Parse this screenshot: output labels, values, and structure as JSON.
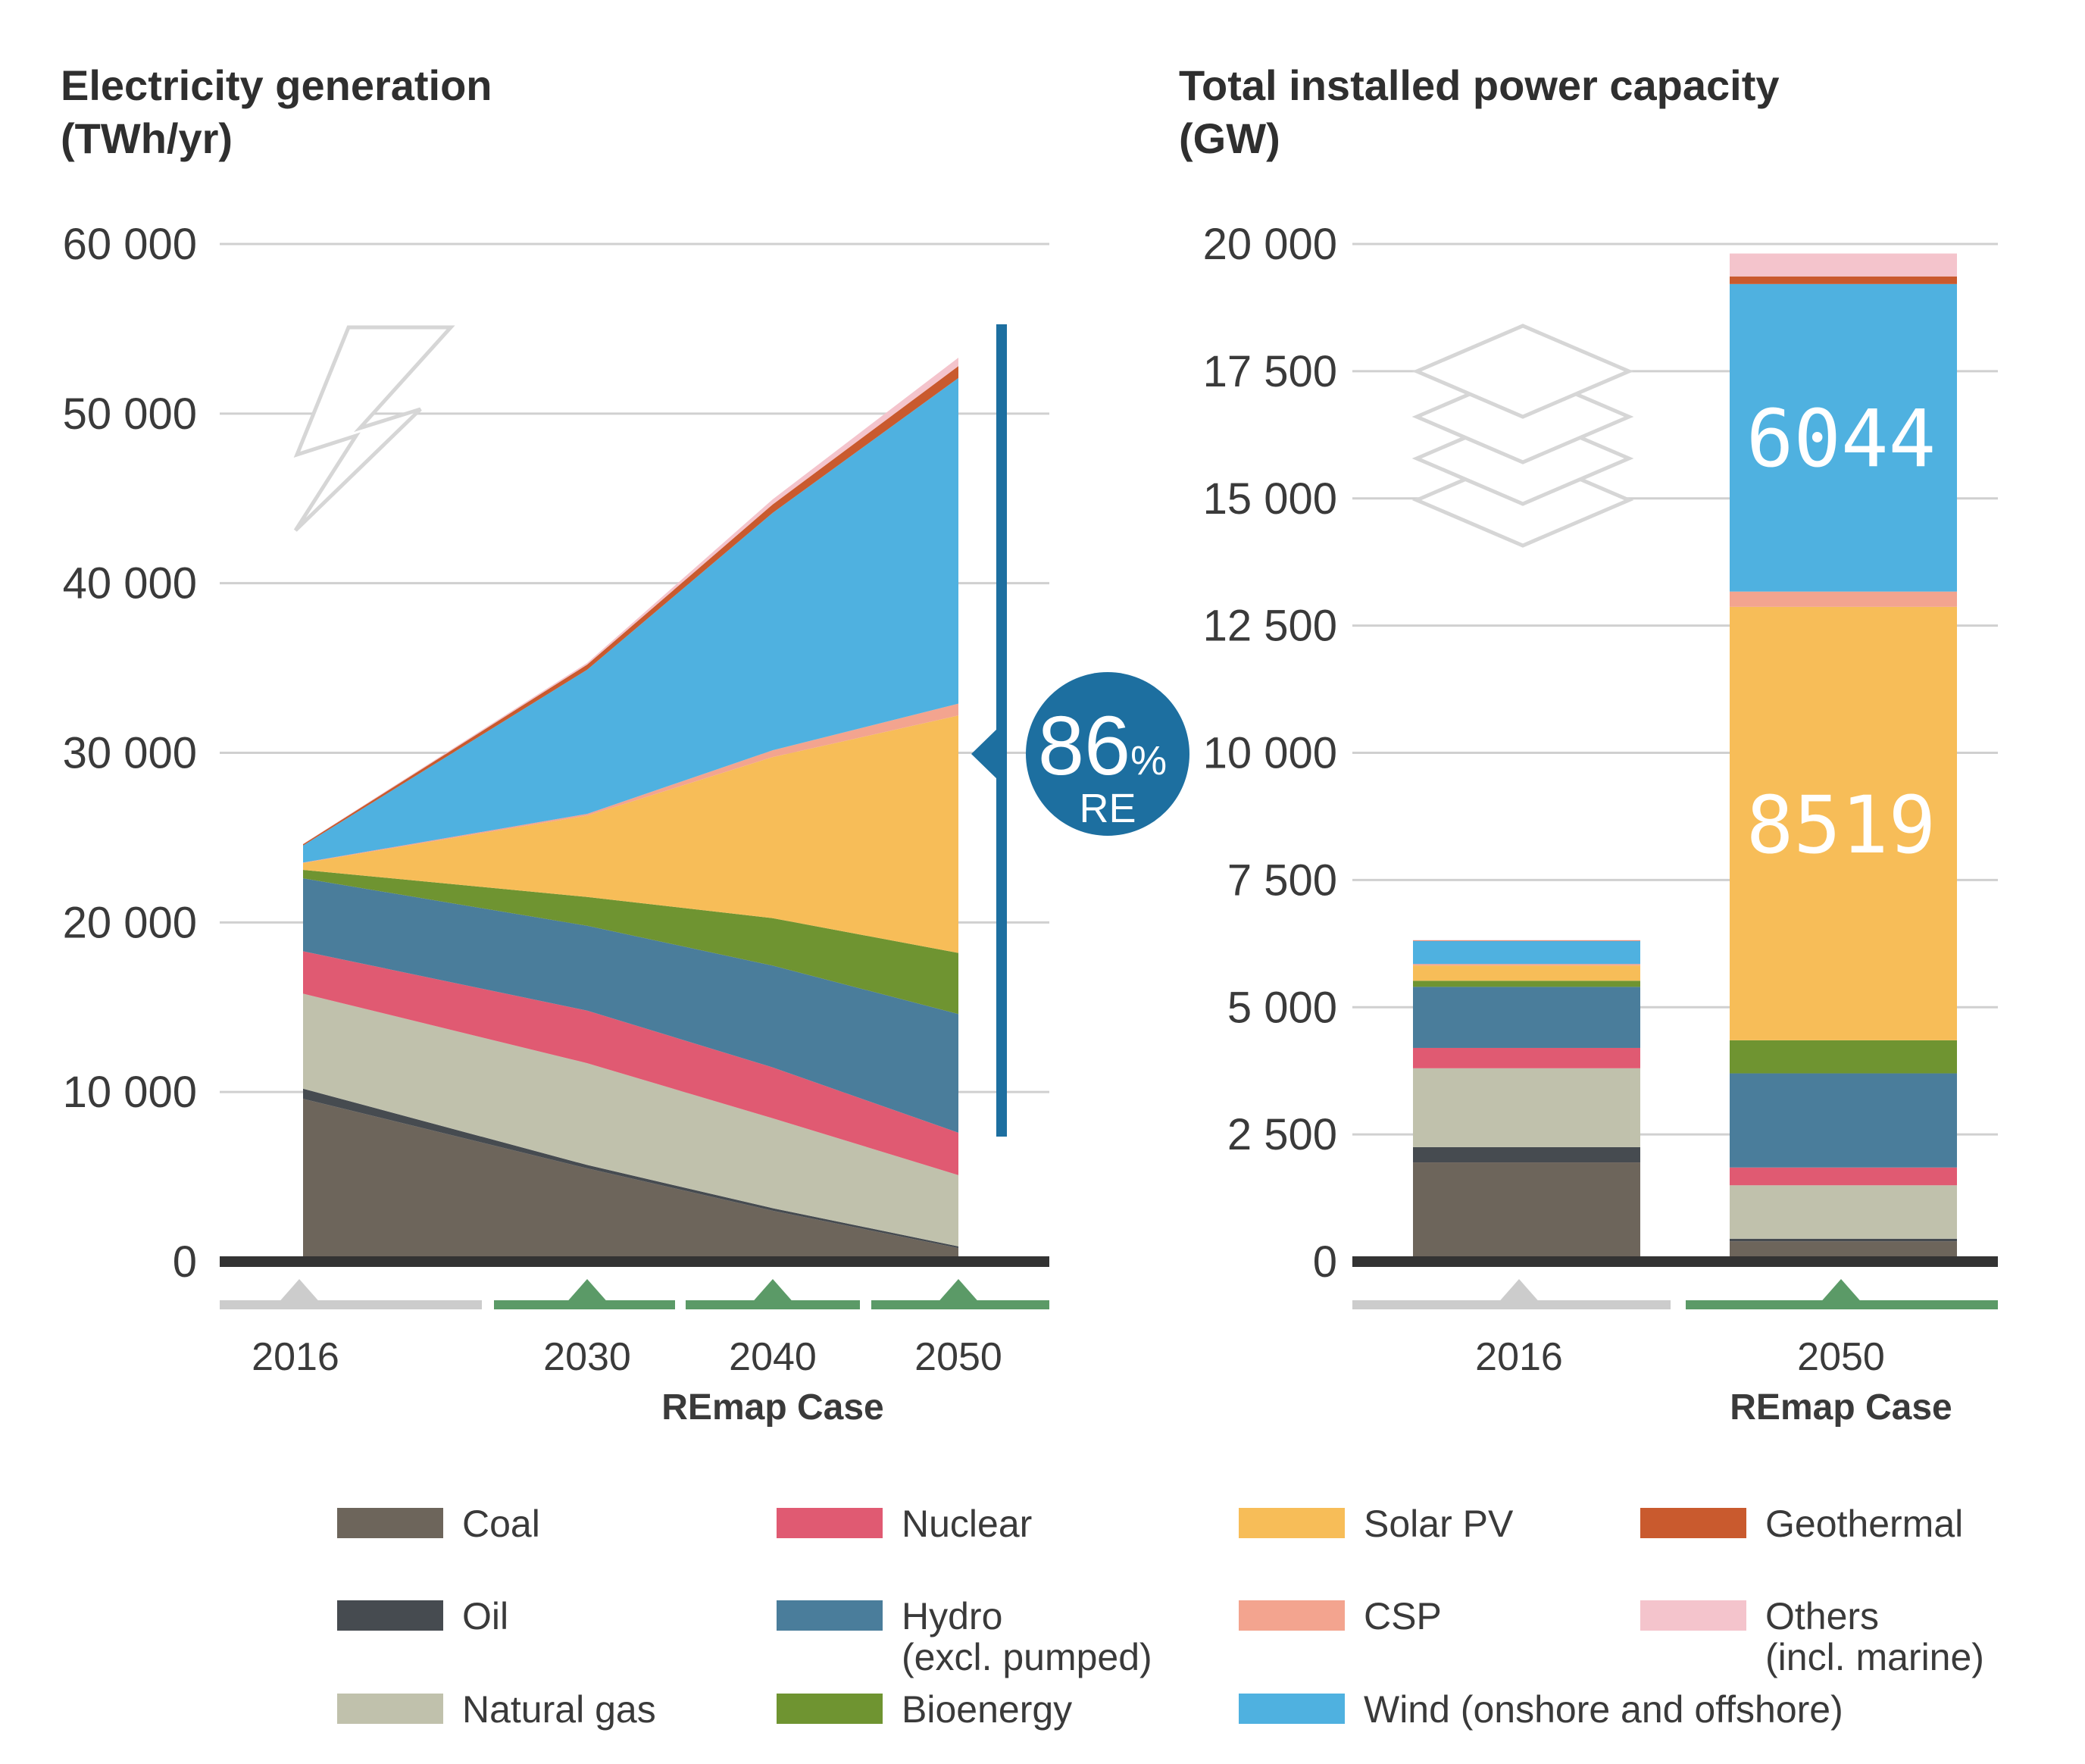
{
  "chart_data": [
    {
      "type": "area",
      "title_line1": "Electricity generation",
      "title_line2": "(TWh/yr)",
      "x": [
        "2016",
        "2030",
        "2040",
        "2050"
      ],
      "case_label": "REmap Case",
      "ylim": [
        0,
        60000
      ],
      "yticks": [
        "0",
        "10 000",
        "20 000",
        "30 000",
        "40 000",
        "50 000",
        "60 000"
      ],
      "ytick_values": [
        0,
        10000,
        20000,
        30000,
        40000,
        50000,
        60000
      ],
      "series": [
        {
          "name": "Coal",
          "values": [
            9600,
            5500,
            3000,
            800
          ]
        },
        {
          "name": "Oil",
          "values": [
            600,
            200,
            150,
            100
          ]
        },
        {
          "name": "Natural gas",
          "values": [
            5600,
            6000,
            5300,
            4200
          ]
        },
        {
          "name": "Nuclear",
          "values": [
            2500,
            3100,
            3000,
            2500
          ]
        },
        {
          "name": "Hydro (excl. pumped)",
          "values": [
            4300,
            5000,
            6000,
            7000
          ]
        },
        {
          "name": "Bioenergy",
          "values": [
            500,
            1700,
            2800,
            3600
          ]
        },
        {
          "name": "Solar PV",
          "values": [
            400,
            4800,
            9500,
            14000
          ]
        },
        {
          "name": "CSP",
          "values": [
            30,
            100,
            400,
            700
          ]
        },
        {
          "name": "Wind (onshore and offshore)",
          "values": [
            1000,
            8500,
            14000,
            19200
          ]
        },
        {
          "name": "Geothermal",
          "values": [
            80,
            300,
            500,
            700
          ]
        },
        {
          "name": "Others (incl. marine)",
          "values": [
            20,
            100,
            300,
            500
          ]
        }
      ],
      "re_share": {
        "value": "86",
        "unit": "%",
        "label": "RE"
      }
    },
    {
      "type": "bar",
      "title_line1": "Total installed power capacity",
      "title_line2": "(GW)",
      "categories": [
        "2016",
        "2050"
      ],
      "case_label": "REmap Case",
      "ylim": [
        0,
        20000
      ],
      "yticks": [
        "0",
        "2 500",
        "5 000",
        "7 500",
        "10 000",
        "12 500",
        "15 000",
        "17 500",
        "20 000"
      ],
      "ytick_values": [
        0,
        2500,
        5000,
        7500,
        10000,
        12500,
        15000,
        17500,
        20000
      ],
      "series": [
        {
          "name": "Coal",
          "values": [
            1950,
            400
          ]
        },
        {
          "name": "Oil",
          "values": [
            300,
            50
          ]
        },
        {
          "name": "Natural gas",
          "values": [
            1550,
            1050
          ]
        },
        {
          "name": "Nuclear",
          "values": [
            400,
            350
          ]
        },
        {
          "name": "Hydro (excl. pumped)",
          "values": [
            1200,
            1850
          ]
        },
        {
          "name": "Bioenergy",
          "values": [
            120,
            650
          ]
        },
        {
          "name": "Solar PV",
          "values": [
            300,
            8519
          ]
        },
        {
          "name": "CSP",
          "values": [
            30,
            300
          ]
        },
        {
          "name": "Wind (onshore and offshore)",
          "values": [
            450,
            6044
          ]
        },
        {
          "name": "Geothermal",
          "values": [
            10,
            150
          ]
        },
        {
          "name": "Others (incl. marine)",
          "values": [
            10,
            450
          ]
        }
      ],
      "labels": {
        "solar_2050": "8519",
        "wind_2050": "6044"
      }
    }
  ],
  "legend": [
    {
      "key": "coal",
      "line1": "Coal",
      "line2": "",
      "color": "#6d655b"
    },
    {
      "key": "oil",
      "line1": "Oil",
      "line2": "",
      "color": "#464b50"
    },
    {
      "key": "gas",
      "line1": "Natural gas",
      "line2": "",
      "color": "#c0c1ac"
    },
    {
      "key": "nuclear",
      "line1": "Nuclear",
      "line2": "",
      "color": "#e05a72"
    },
    {
      "key": "hydro",
      "line1": "Hydro",
      "line2": "(excl. pumped)",
      "color": "#4a7d9b"
    },
    {
      "key": "bio",
      "line1": "Bioenergy",
      "line2": "",
      "color": "#6f9431"
    },
    {
      "key": "solar",
      "line1": "Solar PV",
      "line2": "",
      "color": "#f7bd58"
    },
    {
      "key": "csp",
      "line1": "CSP",
      "line2": "",
      "color": "#f3a48f"
    },
    {
      "key": "wind",
      "line1": "Wind (onshore and offshore)",
      "line2": "",
      "color": "#4fb1e0"
    },
    {
      "key": "geo",
      "line1": "Geothermal",
      "line2": "",
      "color": "#c95a2e"
    },
    {
      "key": "others",
      "line1": "Others",
      "line2": "(incl. marine)",
      "color": "#f4c4cc"
    }
  ],
  "colors": {
    "axis": "#333333",
    "grid": "#d0d0d0",
    "re_blue": "#1d6fa0",
    "timeline_grey": "#cccccc",
    "timeline_green": "#5b9a67"
  }
}
